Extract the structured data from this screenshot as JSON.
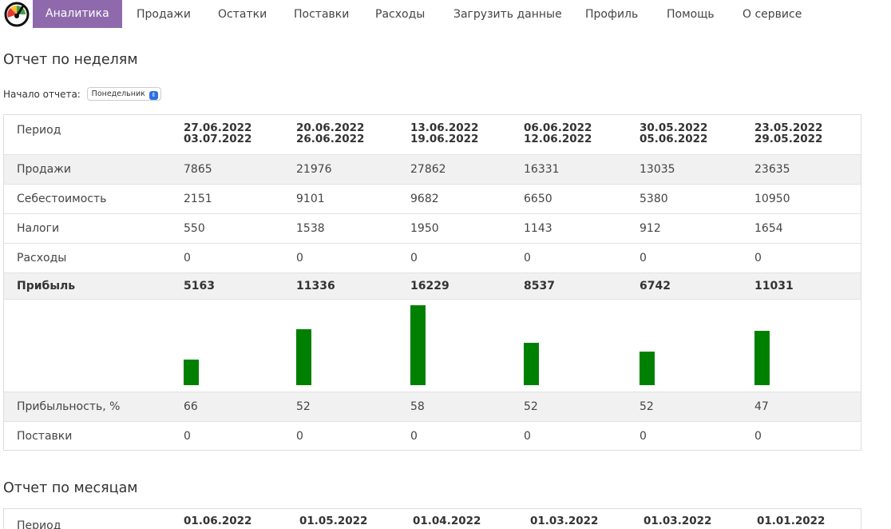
{
  "nav": {
    "items": [
      {
        "label": "Аналитика",
        "active": true
      },
      {
        "label": "Продажи"
      },
      {
        "label": "Остатки"
      },
      {
        "label": "Поставки"
      },
      {
        "label": "Расходы"
      },
      {
        "label": "Загрузить данные"
      },
      {
        "label": "Профиль"
      },
      {
        "label": "Помощь"
      },
      {
        "label": "О сервисе"
      }
    ],
    "active_color": "#8e6aac"
  },
  "weekly": {
    "title": "Отчет по неделям",
    "start_label": "Начало отчета:",
    "start_value": "Понедельник",
    "period_label": "Период",
    "periods": [
      {
        "from": "27.06.2022",
        "to": "03.07.2022"
      },
      {
        "from": "20.06.2022",
        "to": "26.06.2022"
      },
      {
        "from": "13.06.2022",
        "to": "19.06.2022"
      },
      {
        "from": "06.06.2022",
        "to": "12.06.2022"
      },
      {
        "from": "30.05.2022",
        "to": "05.06.2022"
      },
      {
        "from": "23.05.2022",
        "to": "29.05.2022"
      }
    ],
    "rows": [
      {
        "label": "Продажи",
        "values": [
          "7865",
          "21976",
          "27862",
          "16331",
          "13035",
          "23635"
        ]
      },
      {
        "label": "Себестоимость",
        "values": [
          "2151",
          "9101",
          "9682",
          "6650",
          "5380",
          "10950"
        ]
      },
      {
        "label": "Налоги",
        "values": [
          "550",
          "1538",
          "1950",
          "1143",
          "912",
          "1654"
        ]
      },
      {
        "label": "Расходы",
        "values": [
          "0",
          "0",
          "0",
          "0",
          "0",
          "0"
        ]
      },
      {
        "label": "Прибыль",
        "values": [
          "5163",
          "11336",
          "16229",
          "8537",
          "6742",
          "11031"
        ],
        "bold": true
      }
    ],
    "profit_bars": [
      5163,
      11336,
      16229,
      8537,
      6742,
      11031
    ],
    "bar_color": "#008000",
    "rows_after": [
      {
        "label": "Прибыльность, %",
        "values": [
          "66",
          "52",
          "58",
          "52",
          "52",
          "47"
        ]
      },
      {
        "label": "Поставки",
        "values": [
          "0",
          "0",
          "0",
          "0",
          "0",
          "0"
        ]
      }
    ]
  },
  "monthly": {
    "title": "Отчет по месяцам",
    "period_label": "Период",
    "periods": [
      "01.06.2022",
      "01.05.2022",
      "01.04.2022",
      "01.03.2022",
      "01.03.2022",
      "01.01.2022"
    ]
  }
}
